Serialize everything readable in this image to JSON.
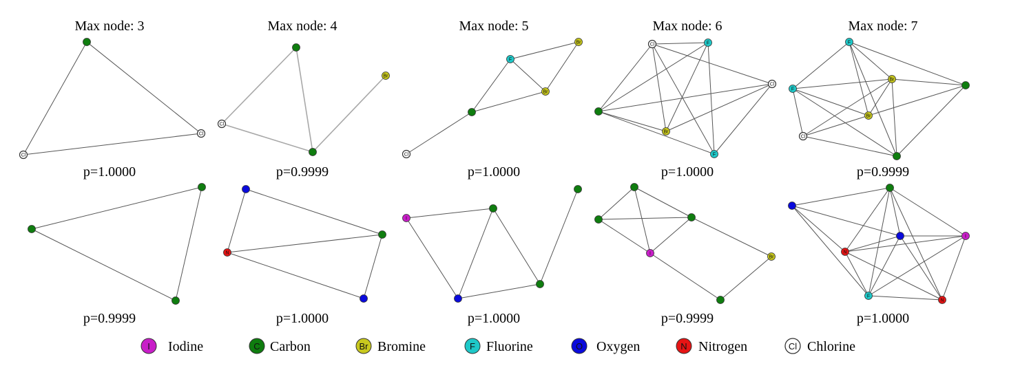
{
  "elements": {
    "I": {
      "name": "Iodine",
      "color": "#c81ec8"
    },
    "C": {
      "name": "Carbon",
      "color": "#0f7d0f"
    },
    "Br": {
      "name": "Bromine",
      "color": "#c8c81e"
    },
    "F": {
      "name": "Fluorine",
      "color": "#1ec8c8"
    },
    "O": {
      "name": "Oxygen",
      "color": "#0a0adc"
    },
    "N": {
      "name": "Nitrogen",
      "color": "#e61414"
    },
    "Cl": {
      "name": "Chlorine",
      "color": "#ffffff"
    }
  },
  "legend_order": [
    "I",
    "C",
    "Br",
    "F",
    "O",
    "N",
    "Cl"
  ],
  "columns": [
    {
      "title": "Max node: 3"
    },
    {
      "title": "Max node: 4"
    },
    {
      "title": "Max node: 5"
    },
    {
      "title": "Max node: 6"
    },
    {
      "title": "Max node: 7"
    }
  ],
  "graphs": [
    {
      "row": 0,
      "col": 0,
      "p": "p=1.0000",
      "nodes": [
        "C",
        "Cl",
        "Cl"
      ],
      "edges": [
        [
          0,
          1
        ],
        [
          0,
          2
        ],
        [
          1,
          2
        ]
      ]
    },
    {
      "row": 0,
      "col": 1,
      "p": "p=0.9999",
      "nodes": [
        "C",
        "Br",
        "Cl",
        "C"
      ],
      "edges": [
        [
          0,
          2
        ],
        [
          0,
          3
        ],
        [
          1,
          3
        ],
        [
          2,
          3
        ]
      ]
    },
    {
      "row": 0,
      "col": 2,
      "p": "p=1.0000",
      "nodes": [
        "Br",
        "F",
        "Br",
        "C",
        "Cl"
      ],
      "edges": [
        [
          0,
          1
        ],
        [
          0,
          2
        ],
        [
          1,
          2
        ],
        [
          1,
          3
        ],
        [
          2,
          3
        ],
        [
          3,
          4
        ]
      ]
    },
    {
      "row": 0,
      "col": 3,
      "p": "p=1.0000",
      "nodes": [
        "Cl",
        "F",
        "Cl",
        "C",
        "Br",
        "F"
      ],
      "edges": [
        [
          0,
          1
        ],
        [
          0,
          2
        ],
        [
          0,
          3
        ],
        [
          0,
          4
        ],
        [
          0,
          5
        ],
        [
          1,
          3
        ],
        [
          1,
          4
        ],
        [
          1,
          5
        ],
        [
          2,
          3
        ],
        [
          2,
          4
        ],
        [
          2,
          5
        ],
        [
          3,
          4
        ],
        [
          3,
          5
        ]
      ]
    },
    {
      "row": 0,
      "col": 4,
      "p": "p=0.9999",
      "nodes": [
        "F",
        "Br",
        "F",
        "C",
        "Br",
        "Cl",
        "C"
      ],
      "edges": [
        [
          0,
          1
        ],
        [
          0,
          2
        ],
        [
          0,
          3
        ],
        [
          0,
          4
        ],
        [
          0,
          6
        ],
        [
          1,
          2
        ],
        [
          1,
          3
        ],
        [
          1,
          4
        ],
        [
          1,
          5
        ],
        [
          1,
          6
        ],
        [
          2,
          4
        ],
        [
          2,
          5
        ],
        [
          2,
          6
        ],
        [
          3,
          4
        ],
        [
          3,
          6
        ],
        [
          4,
          5
        ],
        [
          5,
          6
        ]
      ]
    },
    {
      "row": 1,
      "col": 0,
      "p": "p=0.9999",
      "nodes": [
        "C",
        "C",
        "C"
      ],
      "edges": [
        [
          0,
          1
        ],
        [
          0,
          2
        ],
        [
          1,
          2
        ]
      ]
    },
    {
      "row": 1,
      "col": 1,
      "p": "p=1.0000",
      "nodes": [
        "O",
        "C",
        "N",
        "O"
      ],
      "edges": [
        [
          0,
          1
        ],
        [
          0,
          2
        ],
        [
          1,
          2
        ],
        [
          1,
          3
        ],
        [
          2,
          3
        ]
      ]
    },
    {
      "row": 1,
      "col": 2,
      "p": "p=1.0000",
      "nodes": [
        "C",
        "I",
        "C",
        "C",
        "O"
      ],
      "edges": [
        [
          1,
          2
        ],
        [
          1,
          4
        ],
        [
          2,
          3
        ],
        [
          2,
          4
        ],
        [
          0,
          3
        ],
        [
          3,
          4
        ]
      ]
    },
    {
      "row": 1,
      "col": 3,
      "p": "p=0.9999",
      "nodes": [
        "C",
        "C",
        "C",
        "I",
        "Br",
        "C"
      ],
      "edges": [
        [
          0,
          1
        ],
        [
          0,
          2
        ],
        [
          0,
          3
        ],
        [
          1,
          2
        ],
        [
          1,
          3
        ],
        [
          2,
          3
        ],
        [
          2,
          4
        ],
        [
          3,
          5
        ],
        [
          4,
          5
        ]
      ]
    },
    {
      "row": 1,
      "col": 4,
      "p": "p=1.0000",
      "nodes": [
        "C",
        "O",
        "O",
        "I",
        "N",
        "F",
        "N"
      ],
      "edges": [
        [
          0,
          1
        ],
        [
          0,
          2
        ],
        [
          0,
          3
        ],
        [
          0,
          4
        ],
        [
          0,
          5
        ],
        [
          0,
          6
        ],
        [
          1,
          2
        ],
        [
          1,
          4
        ],
        [
          1,
          5
        ],
        [
          2,
          3
        ],
        [
          2,
          4
        ],
        [
          2,
          5
        ],
        [
          2,
          6
        ],
        [
          3,
          4
        ],
        [
          3,
          5
        ],
        [
          3,
          6
        ],
        [
          4,
          5
        ],
        [
          4,
          6
        ],
        [
          5,
          6
        ]
      ]
    }
  ]
}
